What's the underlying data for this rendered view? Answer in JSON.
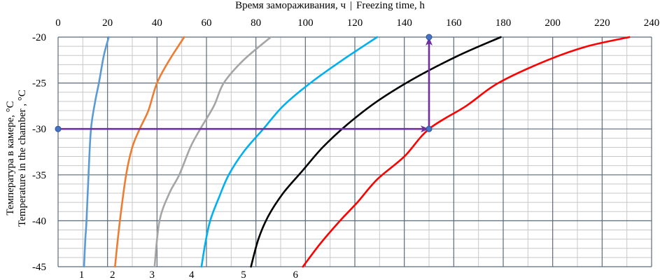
{
  "chart_data": {
    "type": "line",
    "xlabel_ru": "Время замораживания, ч",
    "xlabel_en": "Freezing time, h",
    "ylabel_ru": "Температура в камере, °C",
    "ylabel_en": "Temperature in the chamber , °C",
    "xlim": [
      0,
      240
    ],
    "ylim": [
      -45,
      -20
    ],
    "xticks": [
      0,
      20,
      40,
      60,
      80,
      100,
      120,
      140,
      160,
      180,
      200,
      220,
      240
    ],
    "yticks": [
      -20,
      -25,
      -30,
      -35,
      -40,
      -45
    ],
    "x_minor_step": 10,
    "y_minor_step": 1,
    "grid": true,
    "series": [
      {
        "name": "1",
        "color": "#5b9bd5",
        "points": [
          [
            10.5,
            -45
          ],
          [
            11,
            -42
          ],
          [
            11.5,
            -40
          ],
          [
            12.3,
            -35
          ],
          [
            13.3,
            -30
          ],
          [
            15,
            -27
          ],
          [
            16.5,
            -25
          ],
          [
            18.5,
            -22
          ],
          [
            20.5,
            -20
          ]
        ]
      },
      {
        "name": "2",
        "color": "#ed7d31",
        "points": [
          [
            23,
            -45
          ],
          [
            25,
            -40
          ],
          [
            27.5,
            -35
          ],
          [
            30,
            -32
          ],
          [
            33,
            -30
          ],
          [
            36.5,
            -28
          ],
          [
            40,
            -25
          ],
          [
            45,
            -22.5
          ],
          [
            51,
            -20
          ]
        ]
      },
      {
        "name": "3",
        "color": "#a5a5a5",
        "points": [
          [
            39,
            -45
          ],
          [
            41,
            -40
          ],
          [
            45,
            -37
          ],
          [
            49,
            -35
          ],
          [
            53.5,
            -32
          ],
          [
            57.5,
            -30
          ],
          [
            63,
            -27.5
          ],
          [
            67,
            -25
          ],
          [
            75,
            -22.5
          ],
          [
            86,
            -20
          ]
        ]
      },
      {
        "name": "4",
        "color": "#00b0f0",
        "points": [
          [
            58,
            -45
          ],
          [
            59.5,
            -42.5
          ],
          [
            61.5,
            -40
          ],
          [
            65,
            -37.5
          ],
          [
            69,
            -35
          ],
          [
            75,
            -32.5
          ],
          [
            83,
            -30
          ],
          [
            91,
            -27.5
          ],
          [
            102,
            -25
          ],
          [
            115,
            -22.5
          ],
          [
            129,
            -20
          ]
        ]
      },
      {
        "name": "5",
        "color": "#000000",
        "points": [
          [
            78,
            -45
          ],
          [
            81,
            -42
          ],
          [
            85,
            -39.5
          ],
          [
            91,
            -37
          ],
          [
            99,
            -34.5
          ],
          [
            107,
            -32
          ],
          [
            117,
            -29.5
          ],
          [
            129,
            -27
          ],
          [
            144,
            -24.5
          ],
          [
            162,
            -22
          ],
          [
            179,
            -20
          ]
        ]
      },
      {
        "name": "6",
        "color": "#ff0000",
        "points": [
          [
            99,
            -45
          ],
          [
            106,
            -42.5
          ],
          [
            114,
            -40
          ],
          [
            121,
            -38
          ],
          [
            129,
            -35.5
          ],
          [
            140,
            -33
          ],
          [
            150,
            -30
          ],
          [
            165,
            -27.5
          ],
          [
            178,
            -25
          ],
          [
            198,
            -22.5
          ],
          [
            214,
            -21
          ],
          [
            231,
            -20
          ]
        ]
      }
    ],
    "curve_labels": [
      {
        "text": "1",
        "x": 9.5
      },
      {
        "text": "2",
        "x": 22
      },
      {
        "text": "3",
        "x": 38
      },
      {
        "text": "4",
        "x": 54
      },
      {
        "text": "5",
        "x": 75
      },
      {
        "text": "6",
        "x": 96
      }
    ],
    "annotation_arrows": {
      "color": "#7030a0",
      "horizontal": {
        "from": [
          0,
          -30
        ],
        "to": [
          150,
          -30
        ]
      },
      "vertical": {
        "from": [
          150,
          -30
        ],
        "to": [
          150,
          -20
        ]
      }
    }
  }
}
